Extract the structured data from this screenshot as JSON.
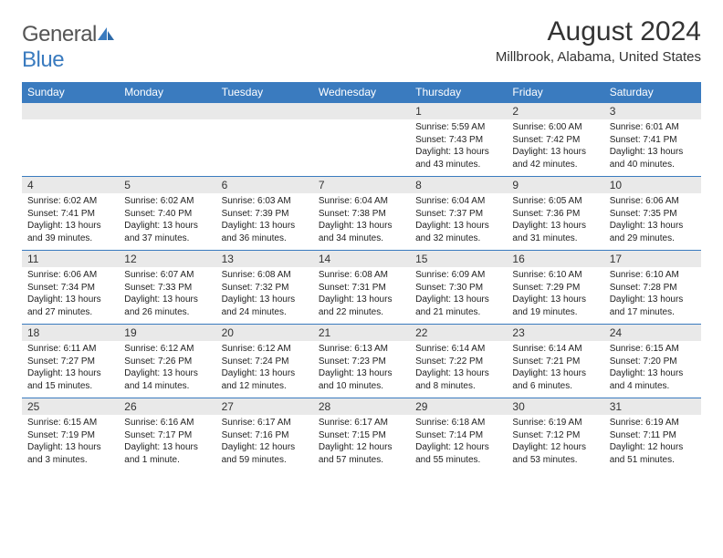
{
  "brand": {
    "word1": "General",
    "word2": "Blue",
    "logo_color": "#3a7bbf",
    "text_color": "#555"
  },
  "title": "August 2024",
  "location": "Millbrook, Alabama, United States",
  "colors": {
    "header_bg": "#3a7bbf",
    "header_fg": "#ffffff",
    "daynum_bg": "#e9e9e9",
    "rule": "#3a7bbf"
  },
  "weekdays": [
    "Sunday",
    "Monday",
    "Tuesday",
    "Wednesday",
    "Thursday",
    "Friday",
    "Saturday"
  ],
  "weeks": [
    [
      null,
      null,
      null,
      null,
      {
        "n": "1",
        "sr": "Sunrise: 5:59 AM",
        "ss": "Sunset: 7:43 PM",
        "d1": "Daylight: 13 hours",
        "d2": "and 43 minutes."
      },
      {
        "n": "2",
        "sr": "Sunrise: 6:00 AM",
        "ss": "Sunset: 7:42 PM",
        "d1": "Daylight: 13 hours",
        "d2": "and 42 minutes."
      },
      {
        "n": "3",
        "sr": "Sunrise: 6:01 AM",
        "ss": "Sunset: 7:41 PM",
        "d1": "Daylight: 13 hours",
        "d2": "and 40 minutes."
      }
    ],
    [
      {
        "n": "4",
        "sr": "Sunrise: 6:02 AM",
        "ss": "Sunset: 7:41 PM",
        "d1": "Daylight: 13 hours",
        "d2": "and 39 minutes."
      },
      {
        "n": "5",
        "sr": "Sunrise: 6:02 AM",
        "ss": "Sunset: 7:40 PM",
        "d1": "Daylight: 13 hours",
        "d2": "and 37 minutes."
      },
      {
        "n": "6",
        "sr": "Sunrise: 6:03 AM",
        "ss": "Sunset: 7:39 PM",
        "d1": "Daylight: 13 hours",
        "d2": "and 36 minutes."
      },
      {
        "n": "7",
        "sr": "Sunrise: 6:04 AM",
        "ss": "Sunset: 7:38 PM",
        "d1": "Daylight: 13 hours",
        "d2": "and 34 minutes."
      },
      {
        "n": "8",
        "sr": "Sunrise: 6:04 AM",
        "ss": "Sunset: 7:37 PM",
        "d1": "Daylight: 13 hours",
        "d2": "and 32 minutes."
      },
      {
        "n": "9",
        "sr": "Sunrise: 6:05 AM",
        "ss": "Sunset: 7:36 PM",
        "d1": "Daylight: 13 hours",
        "d2": "and 31 minutes."
      },
      {
        "n": "10",
        "sr": "Sunrise: 6:06 AM",
        "ss": "Sunset: 7:35 PM",
        "d1": "Daylight: 13 hours",
        "d2": "and 29 minutes."
      }
    ],
    [
      {
        "n": "11",
        "sr": "Sunrise: 6:06 AM",
        "ss": "Sunset: 7:34 PM",
        "d1": "Daylight: 13 hours",
        "d2": "and 27 minutes."
      },
      {
        "n": "12",
        "sr": "Sunrise: 6:07 AM",
        "ss": "Sunset: 7:33 PM",
        "d1": "Daylight: 13 hours",
        "d2": "and 26 minutes."
      },
      {
        "n": "13",
        "sr": "Sunrise: 6:08 AM",
        "ss": "Sunset: 7:32 PM",
        "d1": "Daylight: 13 hours",
        "d2": "and 24 minutes."
      },
      {
        "n": "14",
        "sr": "Sunrise: 6:08 AM",
        "ss": "Sunset: 7:31 PM",
        "d1": "Daylight: 13 hours",
        "d2": "and 22 minutes."
      },
      {
        "n": "15",
        "sr": "Sunrise: 6:09 AM",
        "ss": "Sunset: 7:30 PM",
        "d1": "Daylight: 13 hours",
        "d2": "and 21 minutes."
      },
      {
        "n": "16",
        "sr": "Sunrise: 6:10 AM",
        "ss": "Sunset: 7:29 PM",
        "d1": "Daylight: 13 hours",
        "d2": "and 19 minutes."
      },
      {
        "n": "17",
        "sr": "Sunrise: 6:10 AM",
        "ss": "Sunset: 7:28 PM",
        "d1": "Daylight: 13 hours",
        "d2": "and 17 minutes."
      }
    ],
    [
      {
        "n": "18",
        "sr": "Sunrise: 6:11 AM",
        "ss": "Sunset: 7:27 PM",
        "d1": "Daylight: 13 hours",
        "d2": "and 15 minutes."
      },
      {
        "n": "19",
        "sr": "Sunrise: 6:12 AM",
        "ss": "Sunset: 7:26 PM",
        "d1": "Daylight: 13 hours",
        "d2": "and 14 minutes."
      },
      {
        "n": "20",
        "sr": "Sunrise: 6:12 AM",
        "ss": "Sunset: 7:24 PM",
        "d1": "Daylight: 13 hours",
        "d2": "and 12 minutes."
      },
      {
        "n": "21",
        "sr": "Sunrise: 6:13 AM",
        "ss": "Sunset: 7:23 PM",
        "d1": "Daylight: 13 hours",
        "d2": "and 10 minutes."
      },
      {
        "n": "22",
        "sr": "Sunrise: 6:14 AM",
        "ss": "Sunset: 7:22 PM",
        "d1": "Daylight: 13 hours",
        "d2": "and 8 minutes."
      },
      {
        "n": "23",
        "sr": "Sunrise: 6:14 AM",
        "ss": "Sunset: 7:21 PM",
        "d1": "Daylight: 13 hours",
        "d2": "and 6 minutes."
      },
      {
        "n": "24",
        "sr": "Sunrise: 6:15 AM",
        "ss": "Sunset: 7:20 PM",
        "d1": "Daylight: 13 hours",
        "d2": "and 4 minutes."
      }
    ],
    [
      {
        "n": "25",
        "sr": "Sunrise: 6:15 AM",
        "ss": "Sunset: 7:19 PM",
        "d1": "Daylight: 13 hours",
        "d2": "and 3 minutes."
      },
      {
        "n": "26",
        "sr": "Sunrise: 6:16 AM",
        "ss": "Sunset: 7:17 PM",
        "d1": "Daylight: 13 hours",
        "d2": "and 1 minute."
      },
      {
        "n": "27",
        "sr": "Sunrise: 6:17 AM",
        "ss": "Sunset: 7:16 PM",
        "d1": "Daylight: 12 hours",
        "d2": "and 59 minutes."
      },
      {
        "n": "28",
        "sr": "Sunrise: 6:17 AM",
        "ss": "Sunset: 7:15 PM",
        "d1": "Daylight: 12 hours",
        "d2": "and 57 minutes."
      },
      {
        "n": "29",
        "sr": "Sunrise: 6:18 AM",
        "ss": "Sunset: 7:14 PM",
        "d1": "Daylight: 12 hours",
        "d2": "and 55 minutes."
      },
      {
        "n": "30",
        "sr": "Sunrise: 6:19 AM",
        "ss": "Sunset: 7:12 PM",
        "d1": "Daylight: 12 hours",
        "d2": "and 53 minutes."
      },
      {
        "n": "31",
        "sr": "Sunrise: 6:19 AM",
        "ss": "Sunset: 7:11 PM",
        "d1": "Daylight: 12 hours",
        "d2": "and 51 minutes."
      }
    ]
  ]
}
